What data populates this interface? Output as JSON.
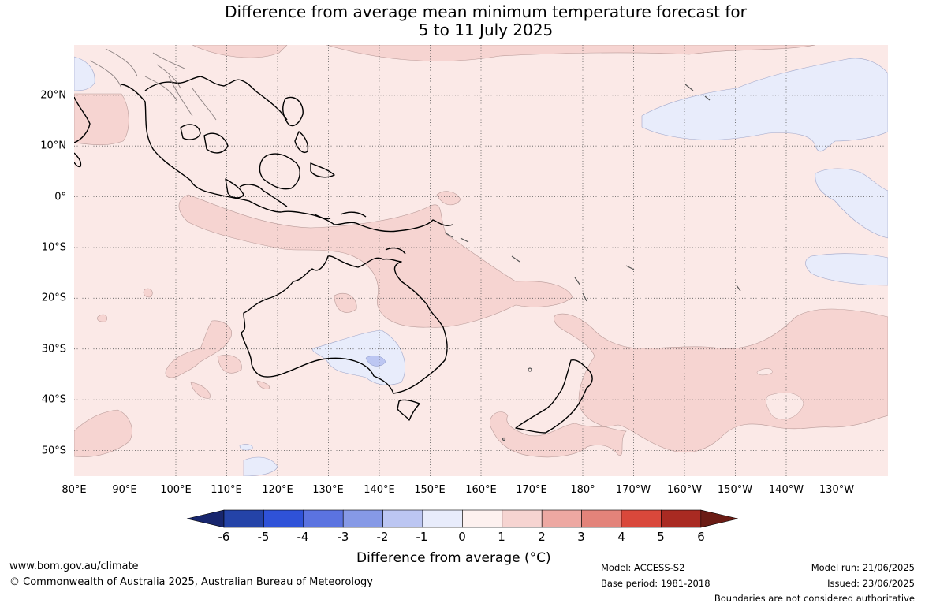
{
  "title": {
    "line1": "Difference from average mean minimum temperature forecast for",
    "line2": "5 to 11 July 2025"
  },
  "lat_labels": [
    "20°N",
    "10°N",
    "0°",
    "10°S",
    "20°S",
    "30°S",
    "40°S",
    "50°S"
  ],
  "lon_labels": [
    "80°E",
    "90°E",
    "100°E",
    "110°E",
    "120°E",
    "130°E",
    "140°E",
    "150°E",
    "160°E",
    "170°E",
    "180°",
    "170°W",
    "160°W",
    "150°W",
    "140°W",
    "130°W"
  ],
  "colorbar": {
    "ticks": [
      "-6",
      "-5",
      "-4",
      "-3",
      "-2",
      "-1",
      "0",
      "1",
      "2",
      "3",
      "4",
      "5",
      "6"
    ],
    "colors": [
      "#18266e",
      "#2443a8",
      "#2f52d8",
      "#5b73e0",
      "#8699e6",
      "#bcc6f2",
      "#e8ecfb",
      "#fdf1ef",
      "#f6d4d1",
      "#eda8a2",
      "#e3837a",
      "#d9483b",
      "#a92a22",
      "#6b1c15"
    ],
    "title": "Difference from average (°C)"
  },
  "footer": {
    "website": "www.bom.gov.au/climate",
    "copyright": "© Commonwealth of Australia 2025, Australian Bureau of Meteorology",
    "model": "Model: ACCESS-S2",
    "base_period": "Base period: 1981-2018",
    "model_run": "Model run: 21/06/2025",
    "issued": "Issued: 23/06/2025",
    "disclaimer": "Boundaries are not considered authoritative"
  }
}
